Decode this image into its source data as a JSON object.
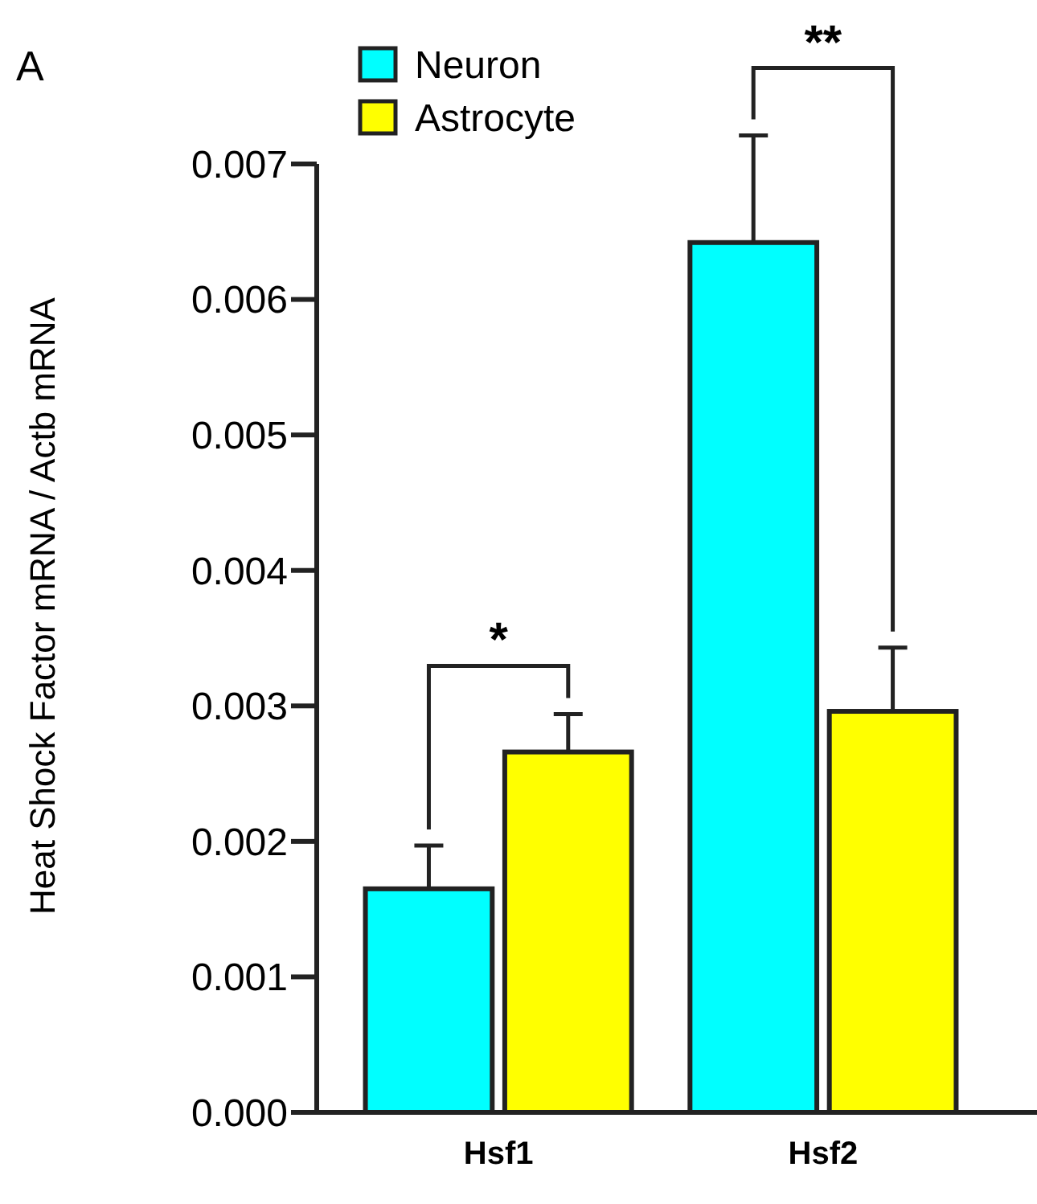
{
  "chart_data": {
    "type": "bar",
    "ylabel": "Heat Shock Factor mRNA / Actb mRNA",
    "categories": [
      "Hsf1",
      "Hsf2"
    ],
    "series": [
      {
        "name": "Neuron",
        "color": "#00ffff",
        "values": [
          0.00165,
          0.00642
        ],
        "errors": [
          [
            0.00165,
            0.00197
          ],
          [
            0.00642,
            0.00721
          ]
        ]
      },
      {
        "name": "Astrocyte",
        "color": "#ffff00",
        "values": [
          0.00266,
          0.00296
        ],
        "errors": [
          [
            0.00266,
            0.00294
          ],
          [
            0.00296,
            0.00343
          ]
        ]
      }
    ],
    "ylim": [
      0,
      0.007
    ],
    "yticks": [
      {
        "value": 0,
        "label": "0.000"
      },
      0.001,
      0.002,
      0.003,
      0.004,
      0.005,
      0.006,
      0.007
    ],
    "legend": "top left",
    "grid": false,
    "annotations": [
      "A",
      "*",
      "**"
    ]
  }
}
